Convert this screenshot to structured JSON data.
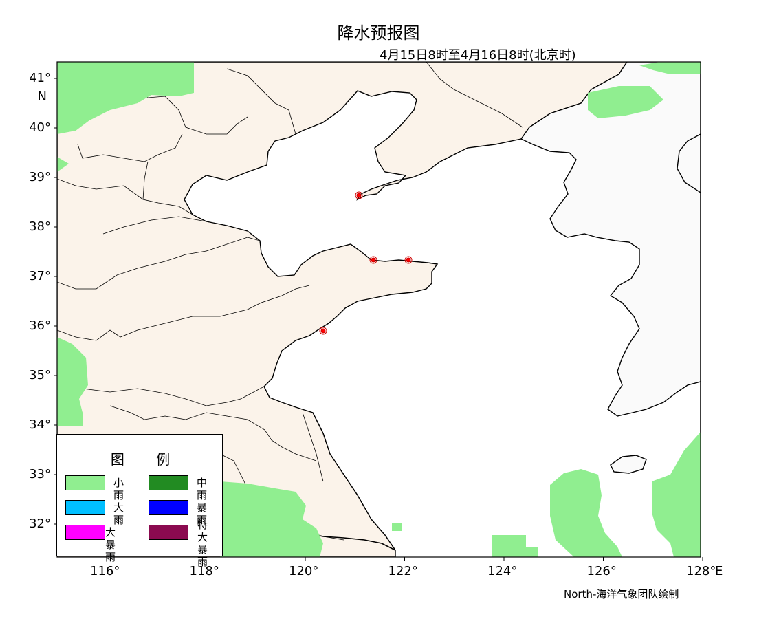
{
  "title": "降水预报图",
  "subtitle": "4月15日8时至4月16日8时(北京时)",
  "credit": "North-海洋气象团队绘制",
  "axes": {
    "lat_labels": [
      "41°",
      "40°",
      "39°",
      "38°",
      "37°",
      "36°",
      "35°",
      "34°",
      "33°",
      "32°"
    ],
    "lat_unit": "N",
    "lon_labels": [
      "116°",
      "118°",
      "120°",
      "122°",
      "124°",
      "126°",
      "128°"
    ],
    "lon_unit": "E"
  },
  "legend": {
    "title": "图 例",
    "items": [
      {
        "label": "小雨",
        "color": "#90ee90"
      },
      {
        "label": "中雨",
        "color": "#228b22"
      },
      {
        "label": "大雨",
        "color": "#00bfff"
      },
      {
        "label": "暴雨",
        "color": "#0000ff"
      },
      {
        "label": "大暴雨",
        "color": "#ff00ff"
      },
      {
        "label": "特大\n暴雨",
        "color": "#8b0a50"
      }
    ]
  },
  "colors": {
    "land_china": "#fbf3ea",
    "land_korea": "#fafafa",
    "sea": "#ffffff",
    "stations": "#ff0000"
  }
}
